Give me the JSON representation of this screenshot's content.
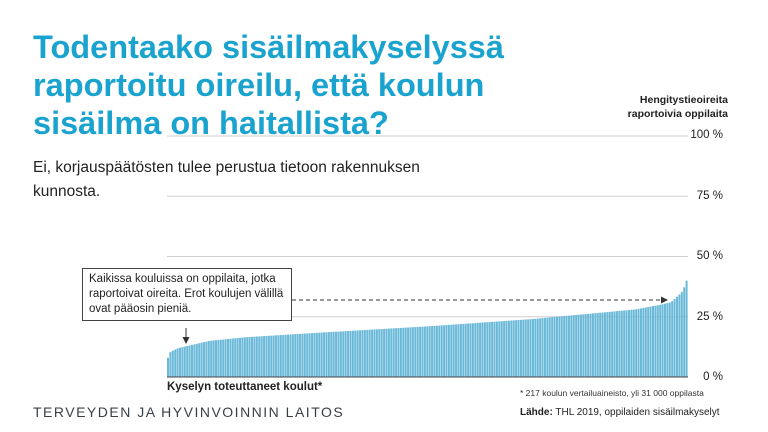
{
  "title": "Todentaako sisäilmakyselyssä raportoitu oireilu, että koulun sisäilma on haitallista?",
  "subtitle": "Ei, korjauspäätösten tulee perustua tietoon rakennuksen kunnosta.",
  "callout": "Kaikissa kouluissa on oppilaita, jotka raportoivat oireita. Erot koulujen välillä ovat pääosin pieniä.",
  "xlabel": "Kyselyn toteuttaneet koulut*",
  "footnote": "* 217 koulun vertailuaineisto, yli 31 000 oppilasta",
  "organization": "TERVEYDEN JA HYVINVOINNIN LAITOS",
  "source_label": "Lähde:",
  "source_text": "THL 2019, oppilaiden sisäilmakyselyt",
  "colors": {
    "accent": "#1aa3cf",
    "bars": "#6ab9d8"
  },
  "chart_data": {
    "type": "bar",
    "title": "",
    "ylabel": "Hengitystieoireita raportoivia oppilaita",
    "xlabel": "Kyselyn toteuttaneet koulut*",
    "ylim": [
      0,
      100
    ],
    "yticks": [
      "100 %",
      "75 %",
      "50 %",
      "25 %",
      "0 %"
    ],
    "grid": true,
    "sorted": "ascending",
    "n_bars": 217,
    "profile": {
      "rank_fraction": [
        0,
        0.005,
        0.02,
        0.04,
        0.08,
        0.15,
        0.3,
        0.5,
        0.7,
        0.85,
        0.9,
        0.95,
        0.97,
        0.98,
        0.99,
        0.995,
        1
      ],
      "percent": [
        8,
        10.5,
        12,
        13,
        15,
        16.5,
        18.5,
        21,
        24,
        27,
        28,
        30,
        31,
        33,
        35,
        37,
        40
      ]
    }
  }
}
